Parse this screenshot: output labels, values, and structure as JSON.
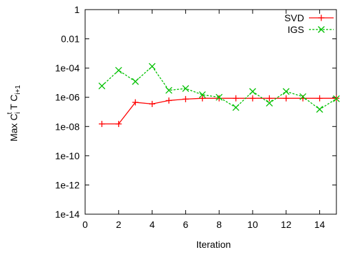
{
  "chart_data": {
    "type": "line",
    "title": "",
    "xlabel": "Iteration",
    "ylabel": {
      "base": "Max C",
      "sub1": "i",
      "sup1": "t",
      "middle": " T C",
      "sub2": "i+1"
    },
    "xlim": [
      0,
      15
    ],
    "xscale": "linear",
    "xticks": [
      0,
      2,
      4,
      6,
      8,
      10,
      12,
      14
    ],
    "ylim": [
      1e-14,
      1
    ],
    "yscale": "log",
    "yticks": [
      {
        "value": 1e-14,
        "label": "1e-14"
      },
      {
        "value": 1e-12,
        "label": "1e-12"
      },
      {
        "value": 1e-10,
        "label": "1e-10"
      },
      {
        "value": 1e-08,
        "label": "1e-08"
      },
      {
        "value": 1e-06,
        "label": "1e-06"
      },
      {
        "value": 0.0001,
        "label": "1e-04"
      },
      {
        "value": 0.01,
        "label": "0.01"
      },
      {
        "value": 1,
        "label": "1"
      }
    ],
    "grid": false,
    "legend_position": "top-right",
    "series": [
      {
        "name": "SVD",
        "color": "#ff0000",
        "marker": "plus",
        "dash": "solid",
        "x": [
          1,
          2,
          3,
          4,
          5,
          6,
          7,
          8,
          9,
          10,
          11,
          12,
          13,
          14,
          15
        ],
        "y": [
          1.5e-08,
          1.5e-08,
          4.5e-07,
          3.5e-07,
          6e-07,
          7.5e-07,
          8.5e-07,
          8.5e-07,
          8.5e-07,
          8.5e-07,
          8.5e-07,
          8.5e-07,
          8.5e-07,
          8.5e-07,
          8.5e-07
        ]
      },
      {
        "name": "IGS",
        "color": "#00c000",
        "marker": "cross",
        "dash": "dashed",
        "x": [
          1,
          2,
          3,
          4,
          5,
          6,
          7,
          8,
          9,
          10,
          11,
          12,
          13,
          14,
          15
        ],
        "y": [
          6e-06,
          7e-05,
          1.2e-05,
          0.00013,
          3e-06,
          4e-06,
          1.5e-06,
          1e-06,
          2e-07,
          2.5e-06,
          4e-07,
          2.5e-06,
          1.1e-06,
          1.5e-07,
          8e-07
        ]
      }
    ]
  }
}
